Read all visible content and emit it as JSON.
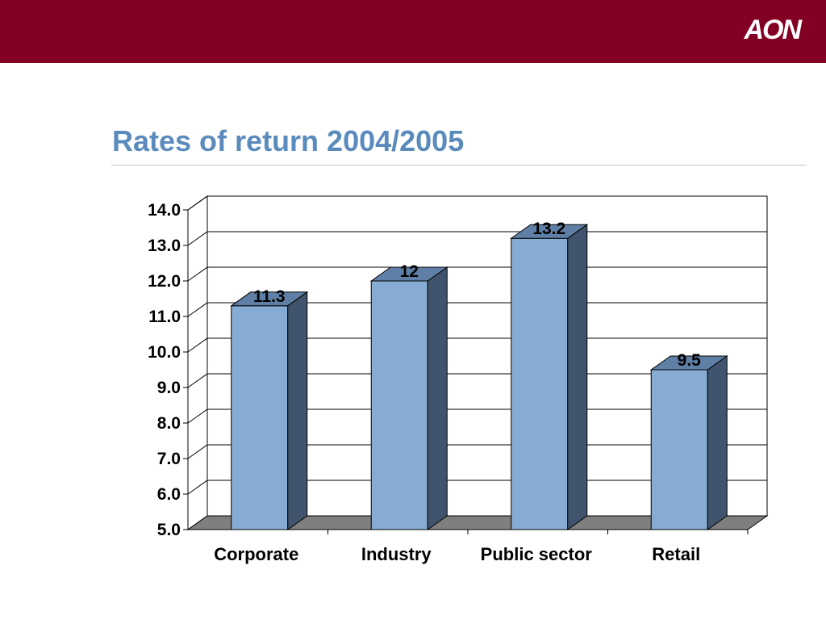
{
  "header": {
    "logo_text": "AON",
    "band_color": "#820021"
  },
  "slide": {
    "title": "Rates of return 2004/2005"
  },
  "chart_data": {
    "type": "bar",
    "style": "3d-column",
    "title": "",
    "xlabel": "",
    "ylabel": "",
    "categories": [
      "Corporate",
      "Industry",
      "Public sector",
      "Retail"
    ],
    "values": [
      11.3,
      12,
      13.2,
      9.5
    ],
    "data_labels": [
      "11.3",
      "12",
      "13.2",
      "9.5"
    ],
    "ylim": [
      5.0,
      14.0
    ],
    "yticks": [
      "5.0",
      "6.0",
      "7.0",
      "8.0",
      "9.0",
      "10.0",
      "11.0",
      "12.0",
      "13.0",
      "14.0"
    ],
    "grid": true,
    "legend": "none",
    "colors": {
      "bar_front": "#87acd3",
      "bar_side": "#41546d",
      "bar_top": "#5f7fa6",
      "floor": "#7f7f7f"
    }
  }
}
